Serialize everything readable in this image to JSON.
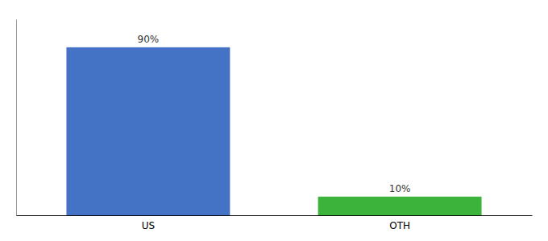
{
  "chart_data": {
    "type": "bar",
    "categories": [
      "US",
      "OTH"
    ],
    "values": [
      90,
      10
    ],
    "value_labels": [
      "90%",
      "10%"
    ],
    "colors": [
      "#4472c4",
      "#3cb43c"
    ],
    "ylim": [
      0,
      105
    ],
    "data_labels": true,
    "tick_labels": "x"
  }
}
